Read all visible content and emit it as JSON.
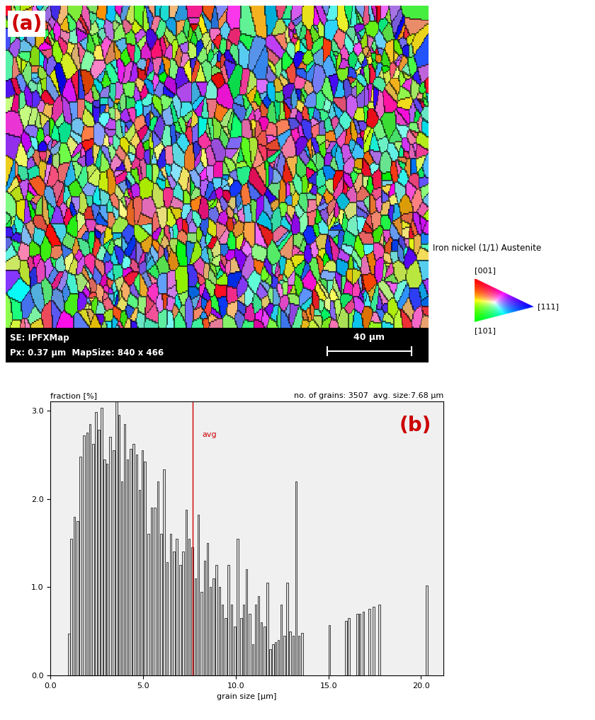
{
  "map": {
    "label": "(a)",
    "info": [
      "SE: IPFXMap",
      "Px: 0.37 µm  MapSize: 840 x 466"
    ],
    "scale_bar": "40 µm",
    "legend": {
      "title": "Iron nickel (1/1) Austenite",
      "top": "[001]",
      "bottom": "[101]",
      "right": "[111]"
    }
  },
  "chart_data": {
    "type": "bar",
    "label": "(b)",
    "y_label": "fraction [%]",
    "header": "no. of grains: 3507  avg. size:7.68 µm",
    "x_label": "grain size [µm]",
    "x": [
      1.0,
      1.12,
      1.28,
      1.45,
      1.62,
      1.8,
      1.97,
      2.12,
      2.3,
      2.45,
      2.6,
      2.75,
      2.9,
      3.05,
      3.22,
      3.4,
      3.55,
      3.7,
      3.85,
      4.0,
      4.15,
      4.32,
      4.48,
      4.65,
      4.8,
      4.95,
      5.1,
      5.28,
      5.45,
      5.62,
      5.8,
      5.97,
      6.13,
      6.3,
      6.48,
      6.65,
      6.82,
      7.0,
      7.15,
      7.32,
      7.48,
      7.65,
      7.82,
      7.98,
      8.15,
      8.32,
      8.48,
      8.62,
      8.8,
      8.95,
      9.12,
      9.28,
      9.45,
      9.6,
      9.78,
      9.95,
      10.1,
      10.28,
      10.42,
      10.58,
      10.75,
      10.92,
      11.08,
      11.22,
      11.38,
      11.55,
      11.7,
      11.85,
      12.0,
      12.15,
      12.3,
      12.45,
      12.62,
      12.78,
      12.92,
      13.1,
      13.25,
      13.4,
      13.58,
      15.05,
      15.95,
      16.1,
      16.55,
      16.7,
      16.88,
      17.2,
      17.45,
      17.75,
      20.3
    ],
    "values": [
      0.47,
      1.55,
      1.8,
      1.75,
      2.48,
      2.72,
      2.75,
      2.85,
      2.62,
      2.98,
      2.78,
      3.03,
      2.45,
      2.4,
      2.7,
      2.55,
      3.1,
      2.95,
      2.2,
      2.85,
      2.45,
      2.57,
      2.62,
      2.5,
      2.1,
      2.55,
      2.42,
      1.6,
      1.9,
      1.9,
      2.2,
      1.6,
      2.33,
      1.28,
      1.6,
      1.4,
      1.55,
      1.25,
      1.4,
      1.88,
      1.55,
      1.45,
      1.1,
      1.82,
      0.95,
      1.3,
      1.5,
      1.0,
      1.1,
      1.25,
      1.0,
      0.8,
      0.65,
      1.25,
      0.8,
      0.55,
      1.55,
      0.65,
      0.8,
      1.2,
      0.7,
      0.35,
      0.8,
      0.9,
      0.6,
      0.55,
      1.05,
      0.3,
      0.35,
      0.38,
      0.4,
      0.8,
      0.45,
      1.05,
      0.5,
      0.45,
      2.2,
      0.45,
      0.48,
      0.57,
      0.62,
      0.65,
      0.7,
      0.7,
      0.72,
      0.75,
      0.78,
      0.8,
      1.02
    ],
    "color": "#d9d9d9",
    "avg": {
      "label": "avg",
      "value": 7.68,
      "color": "#cc0000"
    },
    "xlim": [
      0,
      21.2
    ],
    "xticks": [
      {
        "value": 0,
        "label": "0.0"
      },
      {
        "value": 5,
        "label": "5.0"
      },
      {
        "value": 10,
        "label": "10.0"
      },
      {
        "value": 15,
        "label": "15.0"
      },
      {
        "value": 20,
        "label": "20.0"
      }
    ],
    "ylim": [
      0,
      3.1
    ],
    "yticks": [
      {
        "value": 0,
        "label": "0.0"
      },
      {
        "value": 1,
        "label": "1.0"
      },
      {
        "value": 2,
        "label": "2.0"
      },
      {
        "value": 3,
        "label": "3.0"
      }
    ],
    "grid": false
  }
}
